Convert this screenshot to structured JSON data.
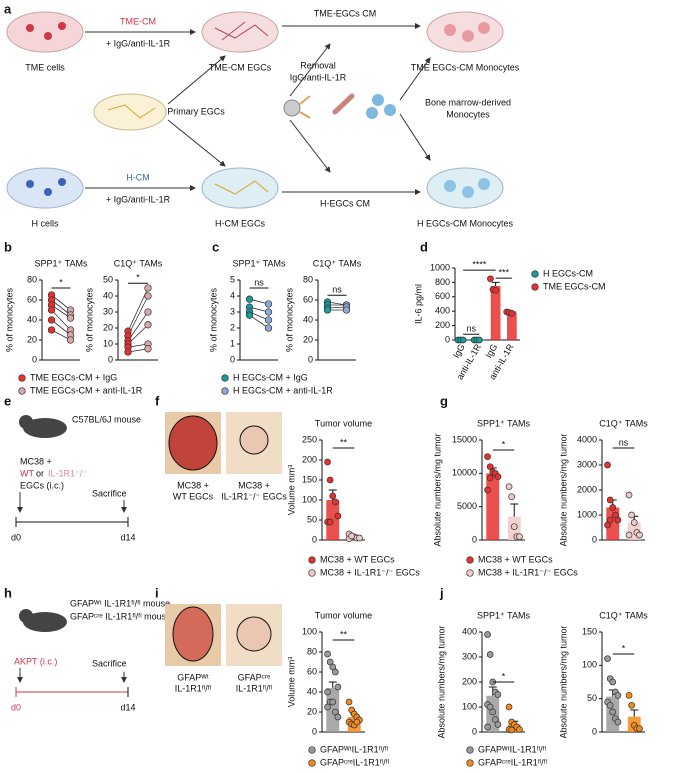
{
  "panel_labels": [
    "a",
    "b",
    "c",
    "d",
    "e",
    "f",
    "g",
    "h",
    "i",
    "j"
  ],
  "diagram_a": {
    "tme_cells": "TME cells",
    "tme_cm": "TME-CM",
    "tme_treat": "+ IgG/anti-IL-1R",
    "tme_egcs": "TME-CM EGCs",
    "tme_egcs_cm": "TME-EGCs CM",
    "removal": "Removal",
    "removal_ab": "IgG/anti-IL-1R",
    "tme_mono": "TME EGCs-CM Monocytes",
    "primary": "Primary EGCs",
    "bm1": "Bone marrow-derived",
    "bm2": "Monocytes",
    "h_cells": "H cells",
    "h_cm": "H-CM",
    "h_treat": "+ IgG/anti-IL-1R",
    "h_egcs": "H-CM EGCs",
    "h_egcs_cm": "H-EGCs CM",
    "h_mono": "H EGCs-CM Monocytes"
  },
  "panel_e": {
    "mouse": "C57BL/6J mouse",
    "mc38": "MC38 +",
    "wt": "WT",
    "or": "or",
    "ko": "IL-1R1⁻/⁻",
    "egcs": "EGCs (i.c.)",
    "sacrifice": "Sacrifice",
    "d0": "d0",
    "d14": "d14"
  },
  "panel_f": {
    "cap1a": "MC38 +",
    "cap1b": "WT EGCs",
    "cap2a": "MC38 +",
    "cap2b": "IL-1R1⁻/⁻ EGCs"
  },
  "panel_h": {
    "mouse1": "GFAPᵂᵗ IL-1R1ᶠˡ/ᶠˡ mouse",
    "mouse2": "GFAPᶜʳᵉ IL-1R1ᶠˡ/ᶠˡ mouse",
    "akpt": "AKPT (i.c.)",
    "sacrifice": "Sacrifice",
    "d0": "d0",
    "d14": "d14"
  },
  "panel_i": {
    "cap1a": "GFAPᵂᵗ",
    "cap1b": "IL-1R1ᶠˡ/ᶠˡ",
    "cap2a": "GFAPᶜʳᵉ",
    "cap2b": "IL-1R1ᶠˡ/ᶠˡ"
  },
  "chart_data": [
    {
      "type": "paired",
      "title": "SPP1⁺ TAMs",
      "ylabel": "% of monocytes",
      "ylim": [
        0,
        80
      ],
      "yticks": [
        0,
        20,
        40,
        60,
        80
      ],
      "significance": [
        "*"
      ],
      "series": [
        {
          "name": "TME EGCs-CM + IgG",
          "color": "#e8312f",
          "values": [
            65,
            60,
            55,
            50,
            40,
            30
          ]
        },
        {
          "name": "TME EGCs-CM + anti-IL-1R",
          "color": "#d9a7a7",
          "values": [
            50,
            45,
            42,
            30,
            25,
            20
          ]
        }
      ]
    },
    {
      "type": "paired",
      "title": "C1Q⁺ TAMs",
      "ylabel": "% of monocytes",
      "ylim": [
        0,
        50
      ],
      "yticks": [
        0,
        10,
        20,
        30,
        40,
        50
      ],
      "significance": [
        "*"
      ],
      "series": [
        {
          "color": "#e8312f",
          "values": [
            18,
            15,
            12,
            10,
            8,
            5
          ]
        },
        {
          "color": "#d9a7a7",
          "values": [
            45,
            40,
            30,
            22,
            10,
            7
          ]
        }
      ]
    },
    {
      "type": "paired",
      "title": "SPP1⁺ TAMs",
      "ylabel": "% of monocytes",
      "ylim": [
        0,
        5
      ],
      "yticks": [
        0,
        1,
        2,
        3,
        4,
        5
      ],
      "significance": [
        "ns"
      ],
      "series": [
        {
          "name": "H EGCs-CM + IgG",
          "color": "#1a9c9c",
          "values": [
            3.8,
            3.3,
            3.0,
            2.8
          ]
        },
        {
          "name": "H EGCs-CM + anti-IL-1R",
          "color": "#8fa8d8",
          "values": [
            3.5,
            3.0,
            2.5,
            2.0
          ]
        }
      ]
    },
    {
      "type": "paired",
      "title": "C1Q⁺ TAMs",
      "ylabel": "% of monocytes",
      "ylim": [
        0,
        80
      ],
      "yticks": [
        0,
        20,
        40,
        60,
        80
      ],
      "significance": [
        "ns"
      ],
      "series": [
        {
          "color": "#1a9c9c",
          "values": [
            58,
            55,
            52,
            50
          ]
        },
        {
          "color": "#8fa8d8",
          "values": [
            55,
            55,
            53,
            50
          ]
        }
      ]
    },
    {
      "type": "bar",
      "ylabel": "IL-6 pg/ml",
      "ylim": [
        0,
        1000
      ],
      "yticks": [
        0,
        200,
        400,
        600,
        800,
        1000
      ],
      "categories": [
        "IgG",
        "anti-IL-1R",
        "IgG",
        "anti-IL-1R"
      ],
      "significance": [
        "ns",
        "****",
        "***"
      ],
      "series": [
        {
          "name": "H EGCs-CM",
          "color": "#1a9c9c",
          "values": [
            0,
            0,
            null,
            null
          ],
          "errors": [
            0,
            0,
            null,
            null
          ],
          "points": [
            [
              0,
              0,
              0
            ],
            [
              0,
              0,
              0
            ],
            null,
            null
          ]
        },
        {
          "name": "TME EGCs-CM",
          "color": "#e8312f",
          "values": [
            null,
            null,
            750,
            380
          ],
          "errors": [
            null,
            null,
            50,
            8
          ],
          "points": [
            null,
            null,
            [
              850,
              700,
              690
            ],
            [
              390,
              380,
              370
            ]
          ]
        }
      ]
    },
    {
      "type": "bar",
      "title": "Tumor volume",
      "ylabel": "Volume mm³",
      "ylim": [
        0,
        250
      ],
      "yticks": [
        0,
        50,
        100,
        150,
        200,
        250
      ],
      "significance": [
        "**"
      ],
      "series": [
        {
          "name": "MC38 + WT EGCs",
          "color": "#e8312f",
          "values": [
            100
          ],
          "errors": [
            25
          ],
          "points": [
            [
              195,
              150,
              110,
              95,
              60,
              45,
              45
            ]
          ]
        },
        {
          "name": "MC38 + IL-1R1⁻/⁻ EGCs",
          "color": "#f0c8c8",
          "values": [
            8
          ],
          "errors": [
            2
          ],
          "points": [
            [
              15,
              10,
              8,
              5,
              5,
              3,
              10
            ]
          ]
        }
      ]
    },
    {
      "type": "bar",
      "title": "SPP1⁺ TAMs",
      "ylabel": "Absolute numbers/mg tumor",
      "ylim": [
        0,
        15000
      ],
      "yticks": [
        0,
        5000,
        10000,
        15000
      ],
      "significance": [
        "*"
      ],
      "series": [
        {
          "name": "MC38 + WT EGCs",
          "color": "#e8312f",
          "values": [
            10000
          ],
          "errors": [
            800
          ],
          "points": [
            [
              12500,
              11000,
              10200,
              10000,
              9500,
              7500,
              9300
            ]
          ]
        },
        {
          "name": "MC38 + IL-1R1⁻/⁻ EGCs",
          "color": "#f0c8c8",
          "values": [
            3500
          ],
          "errors": [
            1900
          ],
          "points": [
            [
              8000,
              6500,
              2000,
              500,
              500
            ]
          ]
        }
      ]
    },
    {
      "type": "bar",
      "title": "C1Q⁺ TAMs",
      "ylabel": "Absolute numbers/mg tumor",
      "ylim": [
        0,
        4000
      ],
      "yticks": [
        0,
        1000,
        2000,
        3000,
        4000
      ],
      "significance": [
        "ns"
      ],
      "series": [
        {
          "color": "#e8312f",
          "values": [
            1300
          ],
          "errors": [
            300
          ],
          "points": [
            [
              3000,
              1600,
              1300,
              1000,
              800,
              600,
              800
            ]
          ]
        },
        {
          "color": "#f0c8c8",
          "values": [
            700
          ],
          "errors": [
            250
          ],
          "points": [
            [
              1800,
              1000,
              700,
              300,
              200,
              200
            ]
          ]
        }
      ]
    },
    {
      "type": "bar",
      "title": "Tumor volume",
      "ylabel": "Volume mm³",
      "ylim": [
        0,
        100
      ],
      "yticks": [
        0,
        20,
        40,
        60,
        80,
        100
      ],
      "significance": [
        "**"
      ],
      "series": [
        {
          "name": "GFAPᵂᵗIL-1R1ᶠˡ/ᶠˡ",
          "color": "#9a9a9a",
          "values": [
            44
          ],
          "errors": [
            6
          ],
          "points": [
            [
              78,
              70,
              65,
              60,
              45,
              40,
              30,
              30,
              20,
              15,
              25
            ]
          ]
        },
        {
          "name": "GFAPᶜʳᵉIL-1R1ᶠˡ/ᶠˡ",
          "color": "#f28a1c",
          "values": [
            15
          ],
          "errors": [
            3
          ],
          "points": [
            [
              30,
              22,
              18,
              15,
              12,
              10,
              8,
              7,
              10
            ]
          ]
        }
      ]
    },
    {
      "type": "bar",
      "title": "SPP1⁺ TAMs",
      "ylabel": "Absolute numbers/mg tumor",
      "ylim": [
        0,
        400
      ],
      "yticks": [
        0,
        100,
        200,
        300,
        400
      ],
      "significance": [
        "*"
      ],
      "series": [
        {
          "name": "GFAPᵂᵗIL-1R1ᶠˡ/ᶠˡ",
          "color": "#9a9a9a",
          "values": [
            145
          ],
          "errors": [
            35
          ],
          "points": [
            [
              390,
              310,
              200,
              160,
              150,
              110,
              100,
              80,
              50,
              30,
              20
            ]
          ]
        },
        {
          "name": "GFAPᶜʳᵉIL-1R1ᶠˡ/ᶠˡ",
          "color": "#f28a1c",
          "values": [
            31
          ],
          "errors": [
            12
          ],
          "points": [
            [
              100,
              40,
              30,
              20,
              10,
              10,
              8
            ]
          ]
        }
      ]
    },
    {
      "type": "bar",
      "title": "C1Q⁺ TAMs",
      "ylabel": "Absolute numbers/mg tumor",
      "ylim": [
        0,
        150
      ],
      "yticks": [
        0,
        50,
        100,
        150
      ],
      "significance": [
        "*"
      ],
      "series": [
        {
          "color": "#9a9a9a",
          "values": [
            53
          ],
          "errors": [
            10
          ],
          "points": [
            [
              110,
              80,
              75,
              60,
              55,
              45,
              40,
              30,
              20,
              15
            ]
          ]
        },
        {
          "color": "#f28a1c",
          "values": [
            23
          ],
          "errors": [
            10
          ],
          "points": [
            [
              55,
              40,
              10,
              5,
              5
            ]
          ]
        }
      ]
    }
  ]
}
